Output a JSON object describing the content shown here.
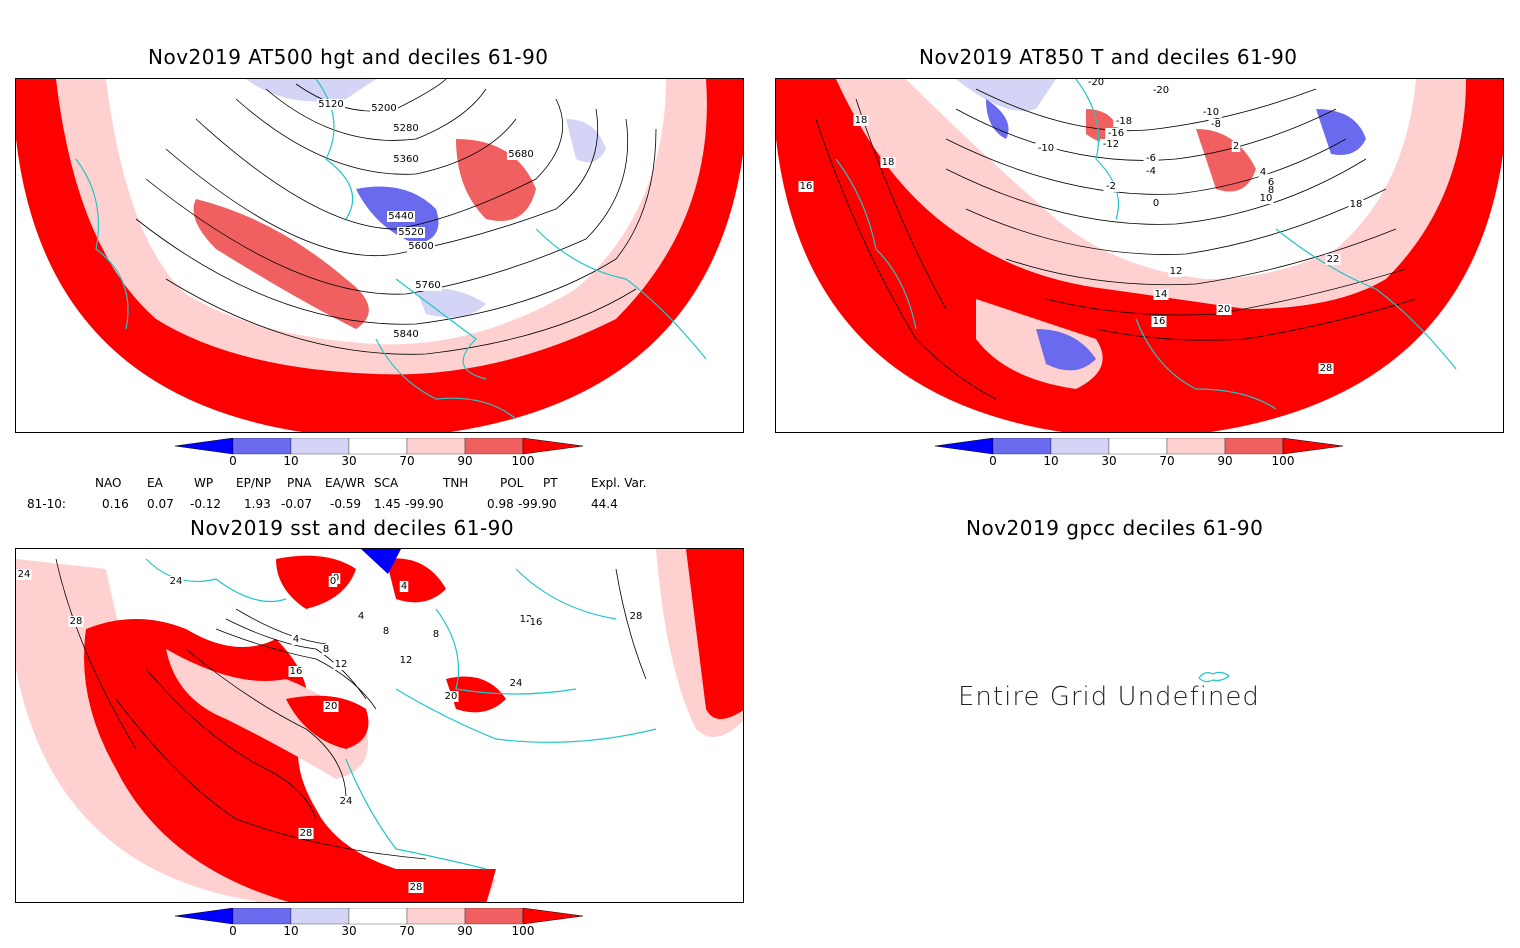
{
  "panels": {
    "hgt": {
      "title": "Nov2019 AT500 hgt and deciles 61-90",
      "labels": [
        "5120",
        "5200",
        "5280",
        "5360",
        "5440",
        "5520",
        "5600",
        "5680",
        "5760",
        "5840"
      ]
    },
    "t850": {
      "title": "Nov2019 AT850 T and deciles 61-90",
      "labels": [
        "-20",
        "-20",
        "-10",
        "-8",
        "-18",
        "-16",
        "-12",
        "-10",
        "-6",
        "-4",
        "-2",
        "0",
        "2",
        "4",
        "6",
        "8",
        "10",
        "12",
        "14",
        "16",
        "18",
        "18",
        "16",
        "18",
        "20",
        "22",
        "28"
      ]
    },
    "sst": {
      "title": "Nov2019 sst and deciles 61-90",
      "labels": [
        "24",
        "24",
        "28",
        "4",
        "8",
        "12",
        "16",
        "20",
        "24",
        "28",
        "28",
        "0",
        "0",
        "4",
        "4",
        "8",
        "12",
        "8",
        "12",
        "16",
        "20",
        "24",
        "28"
      ]
    },
    "gpcc": {
      "title": "Nov2019 gpcc deciles 61-90",
      "message": "Entire Grid Undefined"
    }
  },
  "colorbar": {
    "ticks": [
      "0",
      "10",
      "30",
      "70",
      "90",
      "100"
    ],
    "colors": [
      "#0000ff",
      "#6a6aef",
      "#d4d4f6",
      "#ffffff",
      "#ffd0d0",
      "#f06060",
      "#ff0000"
    ]
  },
  "indices": {
    "headers": [
      "NAO",
      "EA",
      "WP",
      "EP/NP",
      "PNA",
      "EA/WR",
      "SCA",
      "TNH",
      "POL",
      "PT",
      "Expl. Var."
    ],
    "row_label": "81-10:",
    "values": [
      "0.16",
      "0.07",
      "-0.12",
      "1.93",
      "-0.07",
      "-0.59",
      "1.45",
      "-99.90",
      "0.98",
      "-99.90",
      "44.4"
    ]
  },
  "map_colors": {
    "red": "#ff0000",
    "mid": "#f06060",
    "pink": "#ffd0d0",
    "lblue": "#d4d4f6",
    "mblue": "#6a6aef",
    "blue": "#0000ff",
    "coast": "#22c6c6"
  }
}
